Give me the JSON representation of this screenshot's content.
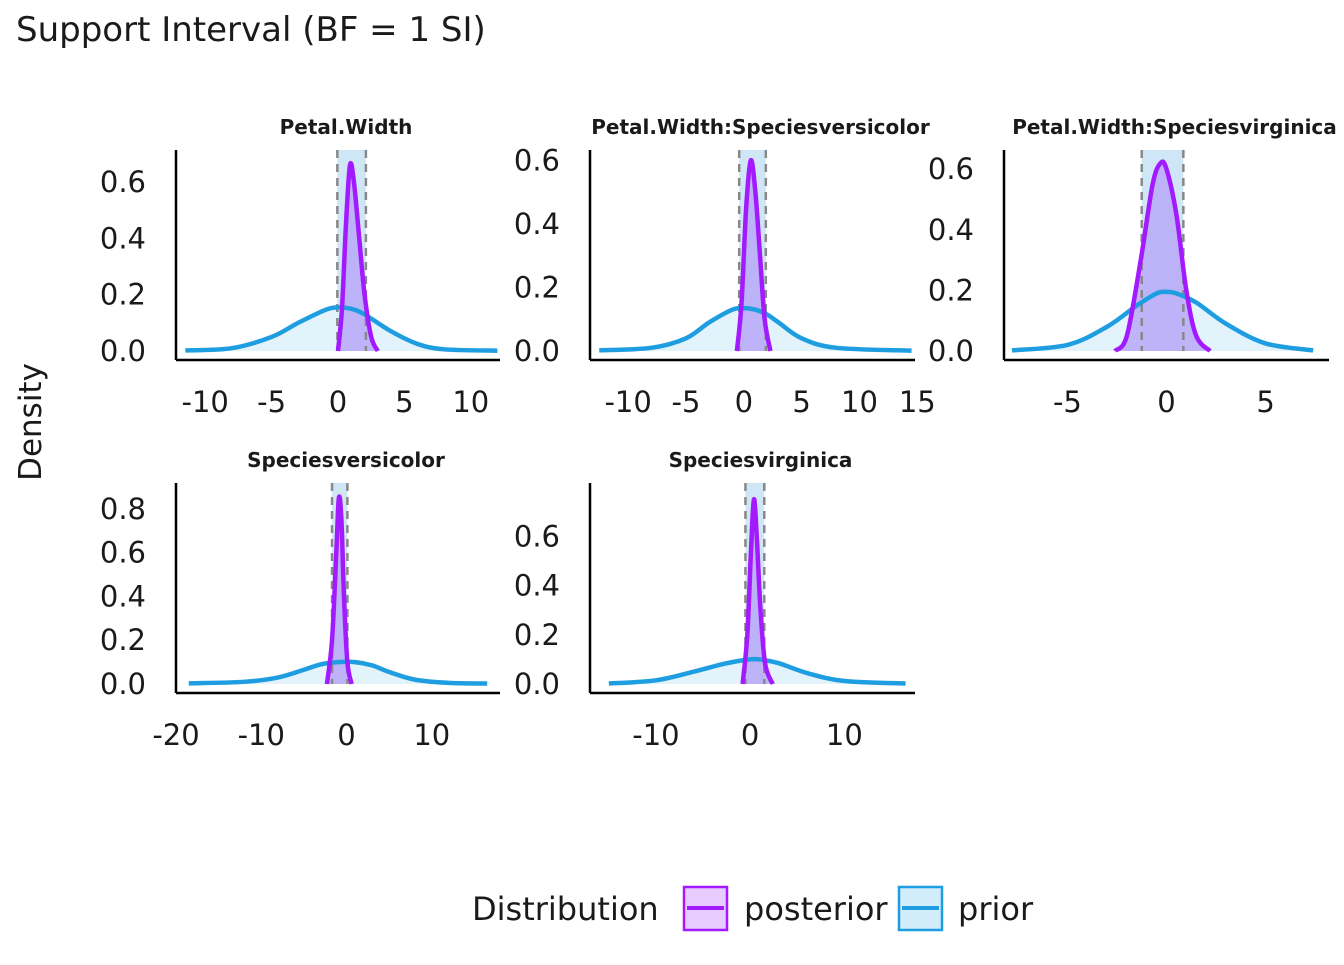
{
  "title": "Support Interval (BF = 1 SI)",
  "ylabel": "Density",
  "legend": {
    "title": "Distribution",
    "items": [
      {
        "label": "posterior",
        "color": "#a31aff",
        "fill": "#e8ccff"
      },
      {
        "label": "prior",
        "color": "#1e9ee0",
        "fill": "#d3ecf9"
      }
    ]
  },
  "colors": {
    "posterior": "#a31aff",
    "posterior_fill": "#b9a8f7",
    "prior": "#1e9ee0",
    "prior_fill": "#dcf0fb",
    "si_band": "#c9e3f5",
    "si_line": "#888888"
  },
  "chart_data": [
    {
      "type": "area",
      "facet": "Petal.Width",
      "xlim": [
        -12.2,
        12.2
      ],
      "ylim": [
        0,
        0.7
      ],
      "xticks": [
        -10,
        -5,
        0,
        5,
        10
      ],
      "xtick_labels": [
        "-10",
        "-5",
        "0",
        "5",
        "10"
      ],
      "yticks": [
        0,
        0.2,
        0.4,
        0.6
      ],
      "ytick_labels": [
        "0.0",
        "0.2",
        "0.4",
        "0.6"
      ],
      "prior": {
        "x_range": [
          -11.5,
          12
        ],
        "points": [
          [
            -11.5,
            0.002
          ],
          [
            -8,
            0.01
          ],
          [
            -5,
            0.05
          ],
          [
            -3,
            0.1
          ],
          [
            -1,
            0.145
          ],
          [
            0,
            0.155
          ],
          [
            1,
            0.15
          ],
          [
            2,
            0.13
          ],
          [
            4,
            0.07
          ],
          [
            6,
            0.025
          ],
          [
            8,
            0.006
          ],
          [
            12,
            0.001
          ]
        ]
      },
      "posterior": {
        "x_range": [
          0,
          3
        ],
        "points": [
          [
            0,
            0.0
          ],
          [
            0.3,
            0.15
          ],
          [
            0.6,
            0.45
          ],
          [
            0.9,
            0.66
          ],
          [
            1.2,
            0.6
          ],
          [
            1.6,
            0.4
          ],
          [
            2,
            0.2
          ],
          [
            2.5,
            0.05
          ],
          [
            3,
            0.0
          ]
        ]
      },
      "support_interval": [
        -0.05,
        2.1
      ]
    },
    {
      "type": "area",
      "facet": "Petal.Width:Speciesversicolor",
      "xlim": [
        -13.3,
        14.8
      ],
      "ylim": [
        0,
        0.62
      ],
      "xticks": [
        -10,
        -5,
        0,
        5,
        10,
        15
      ],
      "xtick_labels": [
        "-10",
        "-5",
        "0",
        "5",
        "10",
        "15"
      ],
      "yticks": [
        0,
        0.2,
        0.4,
        0.6
      ],
      "ytick_labels": [
        "0.0",
        "0.2",
        "0.4",
        "0.6"
      ],
      "prior": {
        "x_range": [
          -12.5,
          14.5
        ],
        "points": [
          [
            -12.5,
            0.002
          ],
          [
            -8,
            0.01
          ],
          [
            -5,
            0.04
          ],
          [
            -3,
            0.09
          ],
          [
            -1,
            0.13
          ],
          [
            0,
            0.135
          ],
          [
            1,
            0.13
          ],
          [
            2,
            0.115
          ],
          [
            3,
            0.09
          ],
          [
            5,
            0.04
          ],
          [
            8,
            0.01
          ],
          [
            14.5,
            0.001
          ]
        ]
      },
      "posterior": {
        "x_range": [
          -0.6,
          2.3
        ],
        "points": [
          [
            -0.6,
            0.0
          ],
          [
            -0.2,
            0.15
          ],
          [
            0.2,
            0.45
          ],
          [
            0.6,
            0.6
          ],
          [
            1.0,
            0.5
          ],
          [
            1.4,
            0.3
          ],
          [
            1.8,
            0.1
          ],
          [
            2.3,
            0.0
          ]
        ]
      },
      "support_interval": [
        -0.4,
        1.9
      ]
    },
    {
      "type": "area",
      "facet": "Petal.Width:Speciesvirginica",
      "xlim": [
        -8.2,
        8.2
      ],
      "ylim": [
        0,
        0.65
      ],
      "xticks": [
        -5,
        0,
        5
      ],
      "xtick_labels": [
        "-5",
        "0",
        "5"
      ],
      "yticks": [
        0,
        0.2,
        0.4,
        0.6
      ],
      "ytick_labels": [
        "0.0",
        "0.2",
        "0.4",
        "0.6"
      ],
      "prior": {
        "x_range": [
          -7.8,
          7.4
        ],
        "points": [
          [
            -7.8,
            0.002
          ],
          [
            -5,
            0.02
          ],
          [
            -3,
            0.08
          ],
          [
            -1.5,
            0.15
          ],
          [
            -0.5,
            0.19
          ],
          [
            0,
            0.195
          ],
          [
            0.5,
            0.19
          ],
          [
            1.5,
            0.16
          ],
          [
            3,
            0.09
          ],
          [
            5,
            0.025
          ],
          [
            7.4,
            0.002
          ]
        ]
      },
      "posterior": {
        "x_range": [
          -2.6,
          2.2
        ],
        "points": [
          [
            -2.6,
            0.0
          ],
          [
            -2,
            0.05
          ],
          [
            -1.3,
            0.3
          ],
          [
            -0.7,
            0.55
          ],
          [
            -0.3,
            0.62
          ],
          [
            0,
            0.6
          ],
          [
            0.5,
            0.45
          ],
          [
            1,
            0.2
          ],
          [
            1.5,
            0.05
          ],
          [
            2.2,
            0.0
          ]
        ]
      },
      "support_interval": [
        -1.25,
        0.85
      ]
    },
    {
      "type": "area",
      "facet": "Speciesversicolor",
      "xlim": [
        -20,
        18
      ],
      "ylim": [
        0,
        0.9
      ],
      "xticks": [
        -20,
        -10,
        0,
        10
      ],
      "xtick_labels": [
        "-20",
        "-10",
        "0",
        "10"
      ],
      "yticks": [
        0,
        0.2,
        0.4,
        0.6,
        0.8
      ],
      "ytick_labels": [
        "0.0",
        "0.2",
        "0.4",
        "0.6",
        "0.8"
      ],
      "prior": {
        "x_range": [
          -18.5,
          16.5
        ],
        "points": [
          [
            -18.5,
            0.003
          ],
          [
            -12,
            0.01
          ],
          [
            -8,
            0.03
          ],
          [
            -5,
            0.065
          ],
          [
            -3,
            0.09
          ],
          [
            -1,
            0.1
          ],
          [
            1,
            0.1
          ],
          [
            3,
            0.085
          ],
          [
            5,
            0.055
          ],
          [
            8,
            0.02
          ],
          [
            12,
            0.005
          ],
          [
            16.5,
            0.002
          ]
        ]
      },
      "posterior": {
        "x_range": [
          -2.3,
          0.6
        ],
        "points": [
          [
            -2.3,
            0.0
          ],
          [
            -1.7,
            0.2
          ],
          [
            -1.2,
            0.6
          ],
          [
            -0.9,
            0.85
          ],
          [
            -0.6,
            0.75
          ],
          [
            -0.3,
            0.4
          ],
          [
            0.1,
            0.1
          ],
          [
            0.6,
            0.0
          ]
        ]
      },
      "support_interval": [
        -1.7,
        0.1
      ]
    },
    {
      "type": "area",
      "facet": "Speciesvirginica",
      "xlim": [
        -17,
        17.5
      ],
      "ylim": [
        0,
        0.8
      ],
      "xticks": [
        -10,
        0,
        10
      ],
      "xtick_labels": [
        "-10",
        "0",
        "10"
      ],
      "yticks": [
        0,
        0.2,
        0.4,
        0.6
      ],
      "ytick_labels": [
        "0.0",
        "0.2",
        "0.4",
        "0.6"
      ],
      "prior": {
        "x_range": [
          -15,
          16.5
        ],
        "points": [
          [
            -15,
            0.002
          ],
          [
            -10,
            0.015
          ],
          [
            -6,
            0.05
          ],
          [
            -3,
            0.08
          ],
          [
            -1,
            0.095
          ],
          [
            0,
            0.1
          ],
          [
            1,
            0.1
          ],
          [
            3,
            0.085
          ],
          [
            6,
            0.045
          ],
          [
            10,
            0.012
          ],
          [
            16.5,
            0.002
          ]
        ]
      },
      "posterior": {
        "x_range": [
          -0.8,
          2.4
        ],
        "points": [
          [
            -0.8,
            0.0
          ],
          [
            -0.3,
            0.2
          ],
          [
            0.1,
            0.55
          ],
          [
            0.4,
            0.75
          ],
          [
            0.7,
            0.6
          ],
          [
            1.1,
            0.3
          ],
          [
            1.6,
            0.08
          ],
          [
            2.4,
            0.0
          ]
        ]
      },
      "support_interval": [
        -0.5,
        1.5
      ]
    }
  ]
}
